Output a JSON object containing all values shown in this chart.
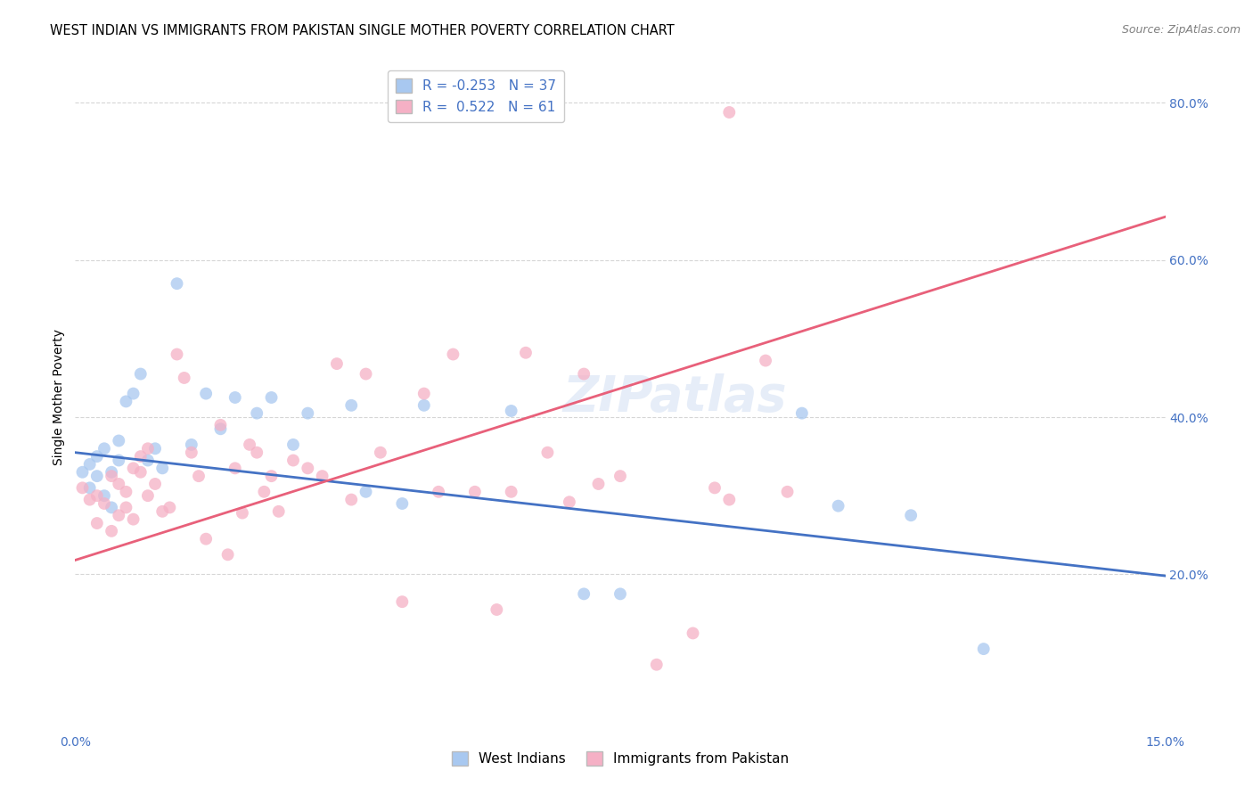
{
  "title": "WEST INDIAN VS IMMIGRANTS FROM PAKISTAN SINGLE MOTHER POVERTY CORRELATION CHART",
  "source": "Source: ZipAtlas.com",
  "ylabel": "Single Mother Poverty",
  "watermark": "ZIPatlas",
  "xmin": 0.0,
  "xmax": 0.15,
  "ymin": 0.0,
  "ymax": 0.85,
  "yticks": [
    0.2,
    0.4,
    0.6,
    0.8
  ],
  "ytick_labels": [
    "20.0%",
    "40.0%",
    "60.0%",
    "80.0%"
  ],
  "legend_blue_R": -0.253,
  "legend_blue_N": 37,
  "legend_pink_R": 0.522,
  "legend_pink_N": 61,
  "blue_color": "#A8C8F0",
  "pink_color": "#F5B0C5",
  "blue_line_color": "#4472C4",
  "pink_line_color": "#E8607A",
  "west_indian_label": "West Indians",
  "pakistan_label": "Immigrants from Pakistan",
  "blue_line_x0": 0.0,
  "blue_line_y0": 0.355,
  "blue_line_x1": 0.15,
  "blue_line_y1": 0.198,
  "pink_line_x0": 0.0,
  "pink_line_y0": 0.218,
  "pink_line_x1": 0.15,
  "pink_line_y1": 0.655,
  "blue_scatter_x": [
    0.001,
    0.002,
    0.002,
    0.003,
    0.003,
    0.004,
    0.004,
    0.005,
    0.005,
    0.006,
    0.006,
    0.007,
    0.008,
    0.009,
    0.01,
    0.011,
    0.012,
    0.014,
    0.016,
    0.018,
    0.02,
    0.022,
    0.025,
    0.027,
    0.03,
    0.032,
    0.038,
    0.04,
    0.045,
    0.048,
    0.06,
    0.07,
    0.075,
    0.1,
    0.105,
    0.115,
    0.125
  ],
  "blue_scatter_y": [
    0.33,
    0.34,
    0.31,
    0.35,
    0.325,
    0.36,
    0.3,
    0.33,
    0.285,
    0.345,
    0.37,
    0.42,
    0.43,
    0.455,
    0.345,
    0.36,
    0.335,
    0.57,
    0.365,
    0.43,
    0.385,
    0.425,
    0.405,
    0.425,
    0.365,
    0.405,
    0.415,
    0.305,
    0.29,
    0.415,
    0.408,
    0.175,
    0.175,
    0.405,
    0.287,
    0.275,
    0.105
  ],
  "pink_scatter_x": [
    0.001,
    0.002,
    0.003,
    0.003,
    0.004,
    0.005,
    0.005,
    0.006,
    0.006,
    0.007,
    0.007,
    0.008,
    0.008,
    0.009,
    0.009,
    0.01,
    0.01,
    0.011,
    0.012,
    0.013,
    0.014,
    0.015,
    0.016,
    0.017,
    0.018,
    0.02,
    0.021,
    0.022,
    0.023,
    0.024,
    0.025,
    0.026,
    0.027,
    0.028,
    0.03,
    0.032,
    0.034,
    0.036,
    0.038,
    0.04,
    0.042,
    0.045,
    0.048,
    0.05,
    0.052,
    0.055,
    0.058,
    0.06,
    0.062,
    0.065,
    0.068,
    0.07,
    0.072,
    0.075,
    0.08,
    0.085,
    0.088,
    0.09,
    0.095,
    0.098,
    0.09
  ],
  "pink_scatter_y": [
    0.31,
    0.295,
    0.265,
    0.3,
    0.29,
    0.325,
    0.255,
    0.315,
    0.275,
    0.305,
    0.285,
    0.335,
    0.27,
    0.33,
    0.35,
    0.3,
    0.36,
    0.315,
    0.28,
    0.285,
    0.48,
    0.45,
    0.355,
    0.325,
    0.245,
    0.39,
    0.225,
    0.335,
    0.278,
    0.365,
    0.355,
    0.305,
    0.325,
    0.28,
    0.345,
    0.335,
    0.325,
    0.468,
    0.295,
    0.455,
    0.355,
    0.165,
    0.43,
    0.305,
    0.48,
    0.305,
    0.155,
    0.305,
    0.482,
    0.355,
    0.292,
    0.455,
    0.315,
    0.325,
    0.085,
    0.125,
    0.31,
    0.295,
    0.472,
    0.305,
    0.788
  ],
  "background_color": "#FFFFFF",
  "grid_color": "#CCCCCC",
  "title_fontsize": 10.5,
  "axis_label_fontsize": 10,
  "tick_fontsize": 10,
  "source_fontsize": 9,
  "watermark_fontsize": 40,
  "watermark_color": "#C8D8F0",
  "watermark_alpha": 0.45
}
